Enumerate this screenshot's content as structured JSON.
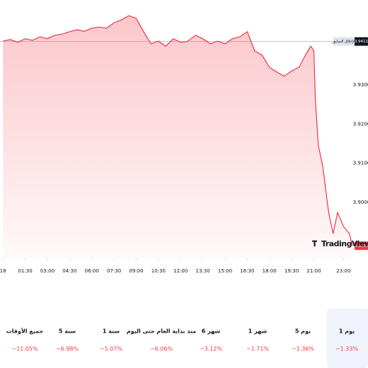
{
  "chart_data": {
    "type": "line",
    "x": [
      0,
      0.5,
      1,
      1.5,
      2,
      2.5,
      3,
      3.5,
      4,
      4.5,
      5,
      5.5,
      6,
      6.5,
      7,
      7.5,
      8,
      8.5,
      9,
      9.5,
      10,
      10.5,
      11,
      11.5,
      12,
      12.5,
      13,
      13.5,
      14,
      14.5,
      15,
      15.5,
      16,
      16.5,
      17,
      17.5,
      18,
      18.5,
      19,
      19.5,
      20,
      20.5,
      20.8,
      21,
      21.1,
      21.3,
      21.6,
      22,
      22.3,
      22.6,
      23,
      23.4,
      23.6
    ],
    "series": [
      {
        "color": "#f23645",
        "values": [
          3.9412,
          3.9416,
          3.9409,
          3.9418,
          3.9414,
          3.9423,
          3.9418,
          3.9427,
          3.943,
          3.9436,
          3.9441,
          3.9437,
          3.9445,
          3.9448,
          3.9445,
          3.9459,
          3.9466,
          3.9477,
          3.947,
          3.9436,
          3.9405,
          3.9412,
          3.9399,
          3.9418,
          3.9409,
          3.9412,
          3.9427,
          3.9418,
          3.9405,
          3.9412,
          3.9405,
          3.9418,
          3.9423,
          3.9436,
          3.9387,
          3.9376,
          3.9345,
          3.9333,
          3.9322,
          3.9336,
          3.9345,
          3.9381,
          3.9399,
          3.9387,
          3.9264,
          3.9146,
          3.9092,
          3.8974,
          3.892,
          3.8974,
          3.8938,
          3.892,
          3.8889
        ]
      }
    ],
    "xlim": [
      -0.2,
      23.7
    ],
    "xticks": [
      {
        "value": 0,
        "label": "18"
      },
      {
        "value": 1.5,
        "label": "01:30"
      },
      {
        "value": 3,
        "label": "03:00"
      },
      {
        "value": 4.5,
        "label": "04:30"
      },
      {
        "value": 6,
        "label": "06:00"
      },
      {
        "value": 7.5,
        "label": "07:30"
      },
      {
        "value": 9,
        "label": "09:00"
      },
      {
        "value": 10.5,
        "label": "10:30"
      },
      {
        "value": 12,
        "label": "12:00"
      },
      {
        "value": 13.5,
        "label": "13:30"
      },
      {
        "value": 15,
        "label": "15:00"
      },
      {
        "value": 16.5,
        "label": "16:30"
      },
      {
        "value": 18,
        "label": "18:00"
      },
      {
        "value": 19.5,
        "label": "19:30"
      },
      {
        "value": 21,
        "label": "21:00"
      },
      {
        "value": 23,
        "label": "23:00"
      }
    ],
    "ylim": [
      3.8857,
      3.9517
    ],
    "yticks": [
      {
        "value": 3.9,
        "label": "3.9000"
      },
      {
        "value": 3.91,
        "label": "3.9100"
      },
      {
        "value": 3.92,
        "label": "3.9200"
      },
      {
        "value": 3.93,
        "label": "3.9300"
      }
    ],
    "previous_close": 3.9411,
    "previous_close_label": "الإغلاق السابق",
    "branding": "TradingView"
  },
  "tabs": [
    {
      "label": "1 يوم",
      "change": "−1.33%"
    },
    {
      "label": "5 يوم",
      "change": "−1.36%"
    },
    {
      "label": "1 شهر",
      "change": "−1.71%"
    },
    {
      "label": "6 شهر",
      "change": "−3.12%"
    },
    {
      "label": "منذ بداية العام حتى اليوم",
      "change": "−6.06%"
    },
    {
      "label": "1 سنة",
      "change": "−5.07%"
    },
    {
      "label": "5 سنة",
      "change": "−6.98%"
    },
    {
      "label": "جميع الأوقات",
      "change": "−11.05%"
    }
  ]
}
